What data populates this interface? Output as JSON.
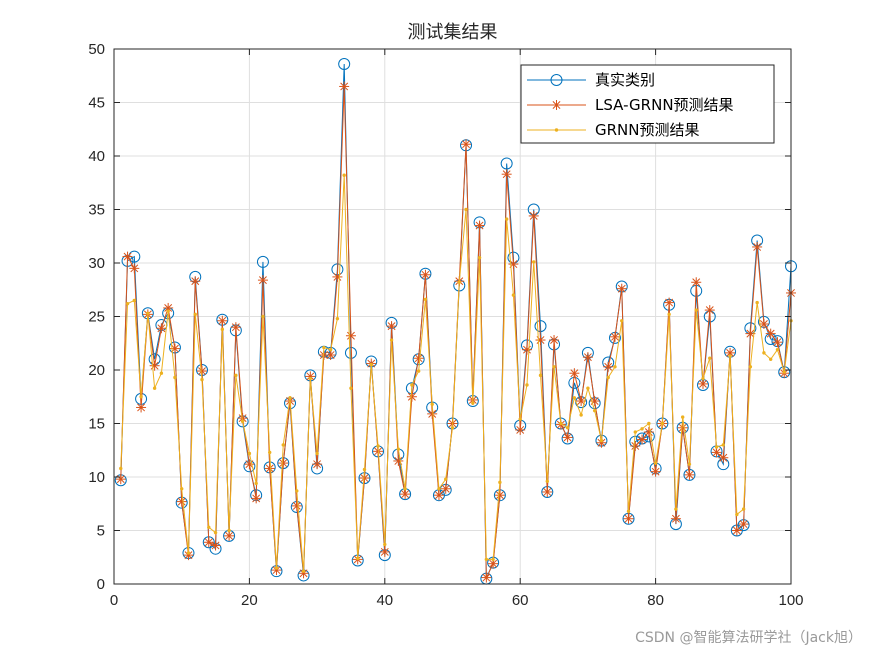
{
  "chart_data": {
    "type": "line",
    "title": "测试集结果",
    "xlabel": "",
    "ylabel": "",
    "xlim": [
      0,
      100
    ],
    "ylim": [
      0,
      50
    ],
    "xticks": [
      0,
      20,
      40,
      60,
      80,
      100
    ],
    "yticks": [
      0,
      5,
      10,
      15,
      20,
      25,
      30,
      35,
      40,
      45,
      50
    ],
    "grid": true,
    "legend_position": "top-right",
    "x": [
      1,
      2,
      3,
      4,
      5,
      6,
      7,
      8,
      9,
      10,
      11,
      12,
      13,
      14,
      15,
      16,
      17,
      18,
      19,
      20,
      21,
      22,
      23,
      24,
      25,
      26,
      27,
      28,
      29,
      30,
      31,
      32,
      33,
      34,
      35,
      36,
      37,
      38,
      39,
      40,
      41,
      42,
      43,
      44,
      45,
      46,
      47,
      48,
      49,
      50,
      51,
      52,
      53,
      54,
      55,
      56,
      57,
      58,
      59,
      60,
      61,
      62,
      63,
      64,
      65,
      66,
      67,
      68,
      69,
      70,
      71,
      72,
      73,
      74,
      75,
      76,
      77,
      78,
      79,
      80,
      81,
      82,
      83,
      84,
      85,
      86,
      87,
      88,
      89,
      90,
      91,
      92,
      93,
      94,
      95,
      96,
      97,
      98,
      99,
      100
    ],
    "series": [
      {
        "name": "真实类别",
        "color": "#0072BD",
        "marker": "circle",
        "values": [
          9.7,
          30.2,
          30.6,
          17.3,
          25.3,
          21.0,
          24.2,
          25.3,
          22.1,
          7.6,
          2.9,
          28.7,
          20.0,
          3.9,
          3.3,
          24.7,
          4.5,
          23.7,
          15.2,
          11.0,
          8.3,
          30.1,
          10.9,
          1.2,
          11.3,
          16.9,
          7.2,
          0.8,
          19.5,
          10.8,
          21.7,
          21.6,
          29.4,
          48.6,
          21.6,
          2.2,
          9.9,
          20.8,
          12.4,
          2.7,
          24.4,
          12.1,
          8.4,
          18.3,
          21.0,
          29.0,
          16.5,
          8.3,
          8.8,
          15.0,
          27.9,
          41.0,
          17.1,
          33.8,
          0.5,
          2.0,
          8.3,
          39.3,
          30.5,
          14.8,
          22.3,
          35.0,
          24.1,
          8.6,
          22.4,
          15.0,
          13.6,
          18.8,
          17.0,
          21.6,
          16.9,
          13.4,
          20.7,
          23.0,
          27.8,
          6.1,
          13.3,
          13.6,
          13.8,
          10.8,
          15.0,
          26.1,
          5.6,
          14.6,
          10.2,
          27.4,
          18.6,
          25.0,
          12.4,
          11.2,
          21.7,
          5.0,
          5.5,
          23.9,
          32.1,
          24.5,
          22.9,
          22.7,
          19.8,
          29.7
        ]
      },
      {
        "name": "LSA-GRNN预测结果",
        "color": "#D95319",
        "marker": "asterisk",
        "values": [
          9.8,
          30.6,
          29.5,
          16.5,
          25.2,
          20.4,
          23.9,
          25.8,
          22.0,
          7.7,
          2.7,
          28.3,
          19.9,
          3.9,
          3.6,
          24.6,
          4.5,
          24.0,
          15.5,
          11.2,
          8.0,
          28.4,
          10.8,
          1.3,
          11.3,
          17.1,
          7.3,
          1.0,
          19.4,
          11.2,
          21.4,
          21.4,
          28.7,
          46.5,
          23.2,
          2.3,
          9.9,
          20.6,
          12.4,
          3.0,
          24.1,
          11.5,
          8.4,
          17.5,
          21.1,
          28.9,
          15.9,
          8.3,
          8.9,
          15.0,
          28.3,
          41.1,
          17.2,
          33.5,
          0.6,
          1.9,
          8.3,
          38.3,
          29.9,
          14.4,
          21.9,
          34.4,
          22.8,
          8.6,
          22.8,
          14.9,
          13.7,
          19.7,
          17.1,
          21.2,
          17.1,
          13.2,
          20.3,
          23.1,
          27.6,
          6.1,
          12.9,
          13.5,
          14.2,
          10.5,
          15.0,
          26.3,
          6.1,
          14.6,
          10.2,
          28.2,
          18.7,
          25.6,
          12.3,
          11.8,
          21.6,
          5.0,
          5.6,
          23.4,
          31.5,
          24.3,
          23.4,
          22.6,
          19.7,
          27.2
        ]
      },
      {
        "name": "GRNN预测结果",
        "color": "#EDB120",
        "marker": "point",
        "values": [
          10.8,
          26.2,
          26.5,
          17.5,
          25.3,
          18.3,
          19.7,
          25.5,
          19.3,
          8.9,
          2.9,
          25.2,
          19.1,
          5.3,
          4.8,
          23.8,
          5.0,
          19.5,
          15.2,
          12.2,
          9.4,
          25.0,
          12.3,
          1.5,
          13.0,
          17.4,
          8.7,
          1.2,
          19.2,
          12.2,
          22.1,
          21.9,
          24.8,
          38.2,
          18.3,
          2.4,
          10.7,
          20.5,
          12.9,
          3.7,
          22.8,
          12.6,
          8.9,
          18.6,
          19.9,
          26.6,
          16.8,
          8.9,
          9.8,
          14.6,
          28.2,
          35.0,
          16.9,
          30.5,
          2.3,
          2.3,
          9.5,
          34.1,
          27.0,
          15.4,
          18.6,
          30.1,
          19.5,
          9.6,
          20.3,
          15.0,
          14.6,
          17.4,
          15.8,
          18.3,
          16.2,
          13.4,
          19.3,
          20.3,
          24.6,
          6.8,
          14.2,
          14.5,
          15.0,
          11.3,
          15.0,
          25.2,
          7.0,
          15.6,
          11.2,
          25.6,
          19.2,
          21.1,
          12.8,
          13.0,
          21.3,
          6.5,
          7.0,
          20.3,
          26.3,
          21.6,
          21.0,
          21.9,
          19.8,
          24.6
        ]
      }
    ]
  },
  "watermark": "CSDN @智能算法研学社（Jack旭）"
}
